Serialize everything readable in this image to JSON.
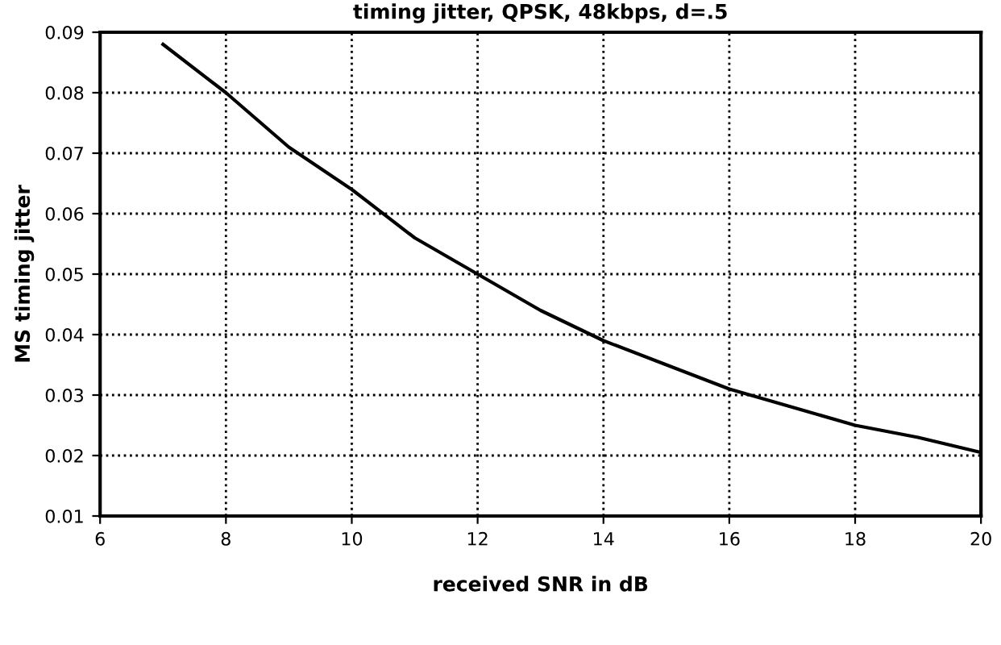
{
  "chart_data": {
    "type": "line",
    "title": "timing jitter, QPSK, 48kbps, d=.5",
    "xlabel": "received SNR in dB",
    "ylabel": "MS timing jitter",
    "x": [
      7,
      8,
      9,
      10,
      11,
      12,
      13,
      14,
      15,
      16,
      17,
      18,
      19,
      20
    ],
    "series": [
      {
        "color": "#000000",
        "values": [
          0.088,
          0.08,
          0.071,
          0.064,
          0.056,
          0.05,
          0.044,
          0.039,
          0.035,
          0.031,
          0.028,
          0.025,
          0.023,
          0.0205
        ]
      }
    ],
    "xlim": [
      6,
      20
    ],
    "ylim": [
      0.01,
      0.09
    ],
    "xticks": [
      6,
      8,
      10,
      12,
      14,
      16,
      18,
      20
    ],
    "yticks": [
      {
        "value": 0.01,
        "label": "0.01"
      },
      {
        "value": 0.02,
        "label": "0.02"
      },
      {
        "value": 0.03,
        "label": "0.03"
      },
      {
        "value": 0.04,
        "label": "0.04"
      },
      {
        "value": 0.05,
        "label": "0.05"
      },
      {
        "value": 0.06,
        "label": "0.06"
      },
      {
        "value": 0.07,
        "label": "0.07"
      },
      {
        "value": 0.08,
        "label": "0.08"
      },
      {
        "value": 0.09,
        "label": "0.09"
      }
    ],
    "grid": true,
    "line_style": "solid",
    "marker": "none"
  }
}
